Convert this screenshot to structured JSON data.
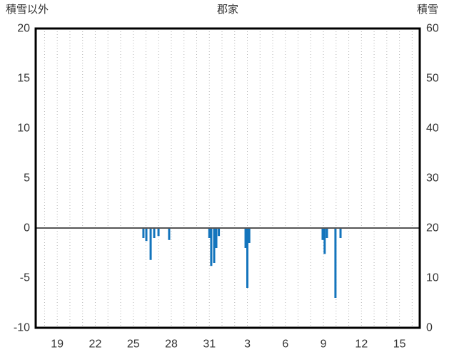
{
  "colors": {
    "bar": "#1374bc",
    "grid": "#b5b5b5",
    "zero_line": "#555555",
    "frame": "#000000",
    "text": "#333333"
  },
  "chart_data": {
    "type": "bar",
    "title": "郡家",
    "left_axis": {
      "label": "積雪以外",
      "min": -10,
      "max": 20,
      "ticks": [
        20,
        15,
        10,
        5,
        0,
        -5,
        -10
      ]
    },
    "right_axis": {
      "label": "積雪",
      "min": 0,
      "max": 60,
      "ticks": [
        60,
        50,
        40,
        30,
        20,
        10,
        0
      ]
    },
    "x_axis": {
      "min": 17.3,
      "max": 47.6,
      "tick_positions": [
        19,
        22,
        25,
        28,
        31,
        34,
        37,
        40,
        43,
        46
      ],
      "tick_labels": [
        "19",
        "22",
        "25",
        "28",
        "31",
        "3",
        "6",
        "9",
        "12",
        "15"
      ],
      "grid_interval_days": 1
    },
    "series": [
      {
        "name": "積雪以外",
        "axis": "left",
        "bars": [
          {
            "x": 25.8,
            "value": -1.0
          },
          {
            "x": 26.03,
            "value": -1.3
          },
          {
            "x": 26.37,
            "value": -3.2
          },
          {
            "x": 26.65,
            "value": -1.0
          },
          {
            "x": 26.99,
            "value": -0.8
          },
          {
            "x": 27.83,
            "value": -1.2
          },
          {
            "x": 31.0,
            "value": -1.0
          },
          {
            "x": 31.15,
            "value": -3.8
          },
          {
            "x": 31.38,
            "value": -3.5
          },
          {
            "x": 31.55,
            "value": -2.0
          },
          {
            "x": 31.75,
            "value": -0.8
          },
          {
            "x": 33.86,
            "value": -2.0
          },
          {
            "x": 34.0,
            "value": -6.0
          },
          {
            "x": 34.15,
            "value": -1.5
          },
          {
            "x": 39.94,
            "value": -1.2
          },
          {
            "x": 40.1,
            "value": -2.6
          },
          {
            "x": 40.28,
            "value": -1.0
          },
          {
            "x": 40.95,
            "value": -7.0
          },
          {
            "x": 41.35,
            "value": -1.0
          }
        ]
      }
    ],
    "snow_series_visible_values": []
  }
}
